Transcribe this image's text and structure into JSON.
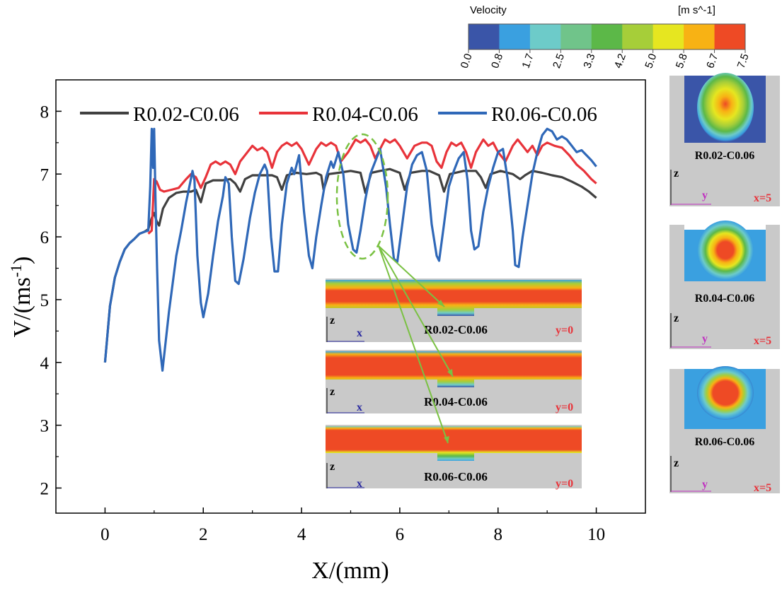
{
  "chart_data": {
    "type": "line",
    "xlabel": "X/(mm)",
    "ylabel": "V/(ms",
    "ylabel_sup": "-1",
    "ylabel_close": ")",
    "xlim": [
      -1,
      11
    ],
    "ylim": [
      1.6,
      8.5
    ],
    "xticks": [
      0,
      2,
      4,
      6,
      8,
      10
    ],
    "yticks": [
      2,
      3,
      4,
      5,
      6,
      7,
      8
    ],
    "legend_position": "top",
    "series": [
      {
        "name": "R0.02-C0.06",
        "color": "#404040",
        "points": [
          [
            0,
            4.0
          ],
          [
            0.1,
            4.9
          ],
          [
            0.2,
            5.35
          ],
          [
            0.3,
            5.6
          ],
          [
            0.4,
            5.8
          ],
          [
            0.5,
            5.9
          ],
          [
            0.6,
            5.97
          ],
          [
            0.7,
            6.05
          ],
          [
            0.8,
            6.08
          ],
          [
            0.88,
            6.12
          ],
          [
            0.95,
            6.3
          ],
          [
            1.0,
            6.38
          ],
          [
            1.05,
            6.25
          ],
          [
            1.1,
            6.18
          ],
          [
            1.18,
            6.45
          ],
          [
            1.3,
            6.62
          ],
          [
            1.45,
            6.7
          ],
          [
            1.6,
            6.72
          ],
          [
            1.75,
            6.72
          ],
          [
            1.85,
            6.75
          ],
          [
            1.95,
            6.55
          ],
          [
            2.05,
            6.85
          ],
          [
            2.2,
            6.9
          ],
          [
            2.4,
            6.9
          ],
          [
            2.55,
            6.92
          ],
          [
            2.65,
            6.85
          ],
          [
            2.75,
            6.72
          ],
          [
            2.85,
            6.92
          ],
          [
            3.0,
            6.98
          ],
          [
            3.2,
            6.98
          ],
          [
            3.4,
            6.98
          ],
          [
            3.5,
            6.95
          ],
          [
            3.6,
            6.75
          ],
          [
            3.7,
            6.98
          ],
          [
            3.9,
            7.02
          ],
          [
            4.1,
            7.0
          ],
          [
            4.3,
            7.02
          ],
          [
            4.4,
            6.98
          ],
          [
            4.45,
            6.75
          ],
          [
            4.55,
            7.0
          ],
          [
            4.75,
            7.02
          ],
          [
            5.0,
            7.05
          ],
          [
            5.2,
            7.02
          ],
          [
            5.3,
            6.7
          ],
          [
            5.42,
            7.02
          ],
          [
            5.6,
            7.05
          ],
          [
            5.8,
            7.08
          ],
          [
            6.0,
            7.02
          ],
          [
            6.1,
            6.75
          ],
          [
            6.22,
            7.02
          ],
          [
            6.45,
            7.05
          ],
          [
            6.6,
            7.05
          ],
          [
            6.8,
            6.98
          ],
          [
            6.9,
            6.72
          ],
          [
            7.02,
            7.0
          ],
          [
            7.3,
            7.05
          ],
          [
            7.55,
            7.05
          ],
          [
            7.65,
            6.95
          ],
          [
            7.75,
            6.78
          ],
          [
            7.85,
            7.0
          ],
          [
            8.05,
            7.05
          ],
          [
            8.3,
            7.0
          ],
          [
            8.45,
            6.92
          ],
          [
            8.55,
            6.98
          ],
          [
            8.7,
            7.05
          ],
          [
            8.9,
            7.02
          ],
          [
            9.1,
            6.98
          ],
          [
            9.3,
            6.95
          ],
          [
            9.5,
            6.88
          ],
          [
            9.7,
            6.8
          ],
          [
            9.85,
            6.72
          ],
          [
            10.0,
            6.62
          ]
        ]
      },
      {
        "name": "R0.04-C0.06",
        "color": "#e8333a",
        "points": [
          [
            0.88,
            6.05
          ],
          [
            0.95,
            6.1
          ],
          [
            1.0,
            6.92
          ],
          [
            1.05,
            6.88
          ],
          [
            1.12,
            6.75
          ],
          [
            1.2,
            6.72
          ],
          [
            1.35,
            6.75
          ],
          [
            1.5,
            6.78
          ],
          [
            1.65,
            6.92
          ],
          [
            1.75,
            7.0
          ],
          [
            1.85,
            6.95
          ],
          [
            1.95,
            6.78
          ],
          [
            2.05,
            6.95
          ],
          [
            2.15,
            7.15
          ],
          [
            2.25,
            7.2
          ],
          [
            2.35,
            7.15
          ],
          [
            2.45,
            7.2
          ],
          [
            2.55,
            7.15
          ],
          [
            2.65,
            7.0
          ],
          [
            2.75,
            7.2
          ],
          [
            2.9,
            7.35
          ],
          [
            3.0,
            7.45
          ],
          [
            3.1,
            7.38
          ],
          [
            3.2,
            7.42
          ],
          [
            3.3,
            7.35
          ],
          [
            3.4,
            7.1
          ],
          [
            3.5,
            7.35
          ],
          [
            3.6,
            7.45
          ],
          [
            3.7,
            7.5
          ],
          [
            3.8,
            7.45
          ],
          [
            3.9,
            7.5
          ],
          [
            4.0,
            7.4
          ],
          [
            4.15,
            7.15
          ],
          [
            4.3,
            7.4
          ],
          [
            4.4,
            7.5
          ],
          [
            4.5,
            7.45
          ],
          [
            4.6,
            7.5
          ],
          [
            4.7,
            7.45
          ],
          [
            4.8,
            7.2
          ],
          [
            4.95,
            7.35
          ],
          [
            5.1,
            7.55
          ],
          [
            5.2,
            7.5
          ],
          [
            5.3,
            7.55
          ],
          [
            5.4,
            7.45
          ],
          [
            5.5,
            7.25
          ],
          [
            5.6,
            7.4
          ],
          [
            5.7,
            7.55
          ],
          [
            5.8,
            7.5
          ],
          [
            5.9,
            7.55
          ],
          [
            6.0,
            7.45
          ],
          [
            6.15,
            7.25
          ],
          [
            6.3,
            7.45
          ],
          [
            6.45,
            7.5
          ],
          [
            6.55,
            7.5
          ],
          [
            6.65,
            7.45
          ],
          [
            6.75,
            7.2
          ],
          [
            6.85,
            7.1
          ],
          [
            6.95,
            7.35
          ],
          [
            7.05,
            7.5
          ],
          [
            7.15,
            7.45
          ],
          [
            7.25,
            7.5
          ],
          [
            7.35,
            7.35
          ],
          [
            7.45,
            7.1
          ],
          [
            7.55,
            7.35
          ],
          [
            7.7,
            7.55
          ],
          [
            7.8,
            7.45
          ],
          [
            7.9,
            7.5
          ],
          [
            8.0,
            7.35
          ],
          [
            8.15,
            7.2
          ],
          [
            8.3,
            7.45
          ],
          [
            8.4,
            7.55
          ],
          [
            8.5,
            7.45
          ],
          [
            8.6,
            7.35
          ],
          [
            8.7,
            7.45
          ],
          [
            8.8,
            7.3
          ],
          [
            8.9,
            7.45
          ],
          [
            9.0,
            7.5
          ],
          [
            9.15,
            7.45
          ],
          [
            9.3,
            7.42
          ],
          [
            9.45,
            7.3
          ],
          [
            9.6,
            7.15
          ],
          [
            9.75,
            7.05
          ],
          [
            9.9,
            6.92
          ],
          [
            10.0,
            6.85
          ]
        ]
      },
      {
        "name": "R0.06-C0.06",
        "color": "#2f68b8",
        "points": [
          [
            0,
            4.0
          ],
          [
            0.1,
            4.9
          ],
          [
            0.2,
            5.35
          ],
          [
            0.3,
            5.6
          ],
          [
            0.4,
            5.8
          ],
          [
            0.5,
            5.9
          ],
          [
            0.6,
            5.97
          ],
          [
            0.7,
            6.05
          ],
          [
            0.8,
            6.08
          ],
          [
            0.88,
            6.1
          ],
          [
            0.92,
            6.8
          ],
          [
            0.95,
            7.72
          ],
          [
            0.98,
            7.1
          ],
          [
            1.0,
            7.72
          ],
          [
            1.03,
            6.5
          ],
          [
            1.06,
            5.5
          ],
          [
            1.1,
            4.35
          ],
          [
            1.17,
            3.87
          ],
          [
            1.3,
            4.8
          ],
          [
            1.45,
            5.7
          ],
          [
            1.55,
            6.1
          ],
          [
            1.65,
            6.55
          ],
          [
            1.73,
            6.85
          ],
          [
            1.78,
            7.05
          ],
          [
            1.82,
            6.9
          ],
          [
            1.88,
            5.7
          ],
          [
            1.95,
            4.95
          ],
          [
            2.0,
            4.72
          ],
          [
            2.1,
            5.1
          ],
          [
            2.2,
            5.7
          ],
          [
            2.3,
            6.25
          ],
          [
            2.4,
            6.65
          ],
          [
            2.45,
            6.95
          ],
          [
            2.52,
            6.85
          ],
          [
            2.58,
            6.0
          ],
          [
            2.65,
            5.3
          ],
          [
            2.72,
            5.25
          ],
          [
            2.82,
            5.65
          ],
          [
            2.95,
            6.3
          ],
          [
            3.05,
            6.7
          ],
          [
            3.15,
            7.0
          ],
          [
            3.25,
            7.15
          ],
          [
            3.3,
            7.05
          ],
          [
            3.38,
            6.0
          ],
          [
            3.45,
            5.45
          ],
          [
            3.52,
            5.45
          ],
          [
            3.6,
            6.2
          ],
          [
            3.7,
            6.85
          ],
          [
            3.8,
            7.1
          ],
          [
            3.85,
            7.0
          ],
          [
            3.95,
            7.3
          ],
          [
            4.05,
            6.4
          ],
          [
            4.15,
            5.7
          ],
          [
            4.22,
            5.5
          ],
          [
            4.3,
            6.0
          ],
          [
            4.4,
            6.5
          ],
          [
            4.5,
            6.95
          ],
          [
            4.6,
            7.2
          ],
          [
            4.65,
            7.1
          ],
          [
            4.75,
            7.35
          ],
          [
            4.85,
            7.0
          ],
          [
            4.95,
            6.2
          ],
          [
            5.05,
            5.8
          ],
          [
            5.12,
            5.75
          ],
          [
            5.2,
            6.1
          ],
          [
            5.3,
            6.6
          ],
          [
            5.4,
            7.0
          ],
          [
            5.45,
            7.1
          ],
          [
            5.55,
            7.3
          ],
          [
            5.6,
            7.4
          ],
          [
            5.72,
            6.8
          ],
          [
            5.8,
            6.2
          ],
          [
            5.88,
            5.65
          ],
          [
            5.95,
            5.6
          ],
          [
            6.05,
            6.2
          ],
          [
            6.15,
            6.8
          ],
          [
            6.25,
            7.15
          ],
          [
            6.35,
            7.3
          ],
          [
            6.45,
            7.35
          ],
          [
            6.55,
            7.05
          ],
          [
            6.65,
            6.2
          ],
          [
            6.75,
            5.7
          ],
          [
            6.8,
            5.62
          ],
          [
            6.9,
            6.2
          ],
          [
            7.0,
            6.8
          ],
          [
            7.1,
            7.05
          ],
          [
            7.2,
            7.25
          ],
          [
            7.3,
            7.35
          ],
          [
            7.38,
            6.9
          ],
          [
            7.45,
            6.1
          ],
          [
            7.52,
            5.8
          ],
          [
            7.6,
            5.85
          ],
          [
            7.7,
            6.4
          ],
          [
            7.8,
            6.8
          ],
          [
            7.9,
            7.1
          ],
          [
            8.0,
            7.35
          ],
          [
            8.1,
            7.4
          ],
          [
            8.2,
            6.9
          ],
          [
            8.3,
            6.1
          ],
          [
            8.35,
            5.55
          ],
          [
            8.42,
            5.52
          ],
          [
            8.5,
            6.0
          ],
          [
            8.6,
            6.5
          ],
          [
            8.7,
            7.0
          ],
          [
            8.8,
            7.35
          ],
          [
            8.9,
            7.62
          ],
          [
            9.0,
            7.72
          ],
          [
            9.1,
            7.68
          ],
          [
            9.2,
            7.55
          ],
          [
            9.3,
            7.6
          ],
          [
            9.4,
            7.55
          ],
          [
            9.5,
            7.45
          ],
          [
            9.6,
            7.35
          ],
          [
            9.7,
            7.38
          ],
          [
            9.8,
            7.3
          ],
          [
            9.9,
            7.22
          ],
          [
            10.0,
            7.12
          ]
        ]
      }
    ],
    "colorbar": {
      "title": "Velocity",
      "units": "[m s^-1]",
      "tick_labels": [
        "0.0",
        "0.8",
        "1.7",
        "2.5",
        "3.3",
        "4.2",
        "5.0",
        "5.8",
        "6.7",
        "7.5"
      ],
      "colors": [
        "#3a55a8",
        "#3aa0e0",
        "#6dcbc9",
        "#70c48a",
        "#5cb848",
        "#a6ce39",
        "#e6e620",
        "#f8b214",
        "#ee4a25"
      ]
    },
    "insets": {
      "cross_sections": [
        {
          "label": "R0.02-C0.06",
          "axis_z": "z",
          "axis_y": "y",
          "position": "x=5"
        },
        {
          "label": "R0.04-C0.06",
          "axis_z": "z",
          "axis_y": "y",
          "position": "x=5"
        },
        {
          "label": "R0.06-C0.06",
          "axis_z": "z",
          "axis_y": "y",
          "position": "x=5"
        }
      ],
      "longitudinal": [
        {
          "label": "R0.02-C0.06",
          "axis_z": "z",
          "axis_x": "x",
          "position": "y=0"
        },
        {
          "label": "R0.04-C0.06",
          "axis_z": "z",
          "axis_x": "x",
          "position": "y=0"
        },
        {
          "label": "R0.06-C0.06",
          "axis_z": "z",
          "axis_x": "x",
          "position": "y=0"
        }
      ]
    }
  }
}
